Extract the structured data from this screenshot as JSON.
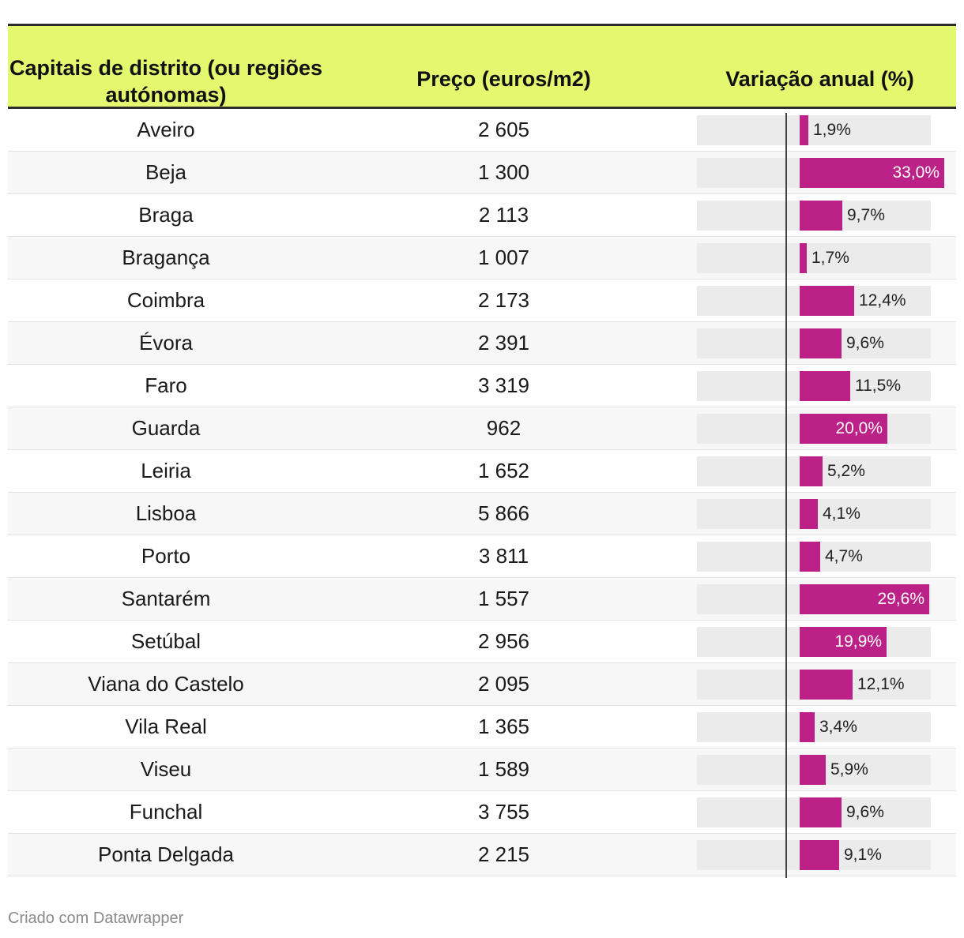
{
  "chart_data": {
    "type": "table",
    "columns": [
      "Capitais de distrito (ou regiões autónomas)",
      "Preço (euros/m2)",
      "Variação anual (%)"
    ],
    "header_color": "#e4f86f",
    "bar_color": "#bb2186",
    "bar_max": 33.0,
    "rows": [
      {
        "name": "Aveiro",
        "price": "2 605",
        "change": 1.9,
        "label": "1,9%"
      },
      {
        "name": "Beja",
        "price": "1 300",
        "change": 33.0,
        "label": "33,0%"
      },
      {
        "name": "Braga",
        "price": "2 113",
        "change": 9.7,
        "label": "9,7%"
      },
      {
        "name": "Bragança",
        "price": "1 007",
        "change": 1.7,
        "label": "1,7%"
      },
      {
        "name": "Coimbra",
        "price": "2 173",
        "change": 12.4,
        "label": "12,4%"
      },
      {
        "name": "Évora",
        "price": "2 391",
        "change": 9.6,
        "label": "9,6%"
      },
      {
        "name": "Faro",
        "price": "3 319",
        "change": 11.5,
        "label": "11,5%"
      },
      {
        "name": "Guarda",
        "price": "962",
        "change": 20.0,
        "label": "20,0%"
      },
      {
        "name": "Leiria",
        "price": "1 652",
        "change": 5.2,
        "label": "5,2%"
      },
      {
        "name": "Lisboa",
        "price": "5 866",
        "change": 4.1,
        "label": "4,1%"
      },
      {
        "name": "Porto",
        "price": "3 811",
        "change": 4.7,
        "label": "4,7%"
      },
      {
        "name": "Santarém",
        "price": "1 557",
        "change": 29.6,
        "label": "29,6%"
      },
      {
        "name": "Setúbal",
        "price": "2 956",
        "change": 19.9,
        "label": "19,9%"
      },
      {
        "name": "Viana do Castelo",
        "price": "2 095",
        "change": 12.1,
        "label": "12,1%"
      },
      {
        "name": "Vila Real",
        "price": "1 365",
        "change": 3.4,
        "label": "3,4%"
      },
      {
        "name": "Viseu",
        "price": "1 589",
        "change": 5.9,
        "label": "5,9%"
      },
      {
        "name": "Funchal",
        "price": "3 755",
        "change": 9.6,
        "label": "9,6%"
      },
      {
        "name": "Ponta Delgada",
        "price": "2 215",
        "change": 9.1,
        "label": "9,1%"
      }
    ]
  },
  "footer": "Criado com Datawrapper"
}
